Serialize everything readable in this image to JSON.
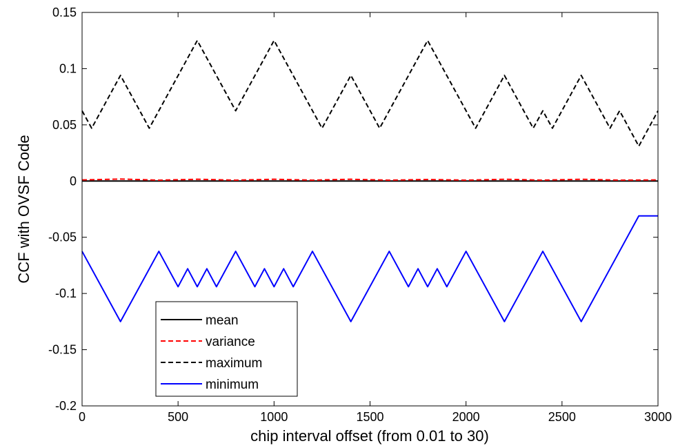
{
  "chart_data": {
    "type": "line",
    "title": "",
    "xlabel": "chip interval offset (from 0.01 to 30)",
    "ylabel": "CCF with OVSF Code",
    "xlim": [
      0,
      3000
    ],
    "ylim": [
      -0.2,
      0.15
    ],
    "xticks": [
      0,
      500,
      1000,
      1500,
      2000,
      2500,
      3000
    ],
    "xtick_labels": [
      "0",
      "500",
      "1000",
      "1500",
      "2000",
      "2500",
      "3000"
    ],
    "yticks": [
      -0.2,
      -0.15,
      -0.1,
      -0.05,
      0,
      0.05,
      0.1,
      0.15
    ],
    "ytick_labels": [
      "-0.2",
      "-0.15",
      "-0.1",
      "-0.05",
      "0",
      "0.05",
      "0.1",
      "0.15"
    ],
    "grid": false,
    "legend_position": "bottom-left",
    "series": [
      {
        "name": "mean",
        "color": "#000000",
        "dash": "solid",
        "points": [
          [
            0,
            0
          ],
          [
            3000,
            0
          ]
        ]
      },
      {
        "name": "variance",
        "color": "#ff0000",
        "dash": "dashed",
        "points": [
          [
            0,
            0.001
          ],
          [
            200,
            0.0018
          ],
          [
            400,
            0.0008
          ],
          [
            600,
            0.0016
          ],
          [
            800,
            0.0008
          ],
          [
            1000,
            0.0016
          ],
          [
            1200,
            0.0008
          ],
          [
            1400,
            0.0016
          ],
          [
            1600,
            0.0008
          ],
          [
            1800,
            0.0014
          ],
          [
            2000,
            0.0008
          ],
          [
            2200,
            0.0016
          ],
          [
            2400,
            0.0008
          ],
          [
            2600,
            0.0016
          ],
          [
            2800,
            0.0008
          ],
          [
            3000,
            0.001
          ]
        ]
      },
      {
        "name": "maximum",
        "color": "#000000",
        "dash": "dashed",
        "points": [
          [
            0,
            0.0625
          ],
          [
            50,
            0.047
          ],
          [
            200,
            0.094
          ],
          [
            350,
            0.047
          ],
          [
            600,
            0.125
          ],
          [
            800,
            0.0625
          ],
          [
            1000,
            0.125
          ],
          [
            1250,
            0.047
          ],
          [
            1400,
            0.094
          ],
          [
            1550,
            0.047
          ],
          [
            1800,
            0.125
          ],
          [
            2050,
            0.047
          ],
          [
            2200,
            0.094
          ],
          [
            2350,
            0.047
          ],
          [
            2400,
            0.0625
          ],
          [
            2450,
            0.047
          ],
          [
            2600,
            0.094
          ],
          [
            2750,
            0.047
          ],
          [
            2800,
            0.0625
          ],
          [
            2900,
            0.031
          ],
          [
            3000,
            0.0625
          ]
        ]
      },
      {
        "name": "minimum",
        "color": "#0000ff",
        "dash": "solid",
        "points": [
          [
            0,
            -0.0625
          ],
          [
            200,
            -0.125
          ],
          [
            400,
            -0.0625
          ],
          [
            500,
            -0.094
          ],
          [
            550,
            -0.078
          ],
          [
            600,
            -0.094
          ],
          [
            650,
            -0.078
          ],
          [
            700,
            -0.094
          ],
          [
            800,
            -0.0625
          ],
          [
            900,
            -0.094
          ],
          [
            950,
            -0.078
          ],
          [
            1000,
            -0.094
          ],
          [
            1050,
            -0.078
          ],
          [
            1100,
            -0.094
          ],
          [
            1200,
            -0.0625
          ],
          [
            1400,
            -0.125
          ],
          [
            1600,
            -0.0625
          ],
          [
            1700,
            -0.094
          ],
          [
            1750,
            -0.078
          ],
          [
            1800,
            -0.094
          ],
          [
            1850,
            -0.078
          ],
          [
            1900,
            -0.094
          ],
          [
            2000,
            -0.0625
          ],
          [
            2200,
            -0.125
          ],
          [
            2400,
            -0.0625
          ],
          [
            2600,
            -0.125
          ],
          [
            2900,
            -0.031
          ],
          [
            3000,
            -0.031
          ]
        ]
      }
    ]
  }
}
